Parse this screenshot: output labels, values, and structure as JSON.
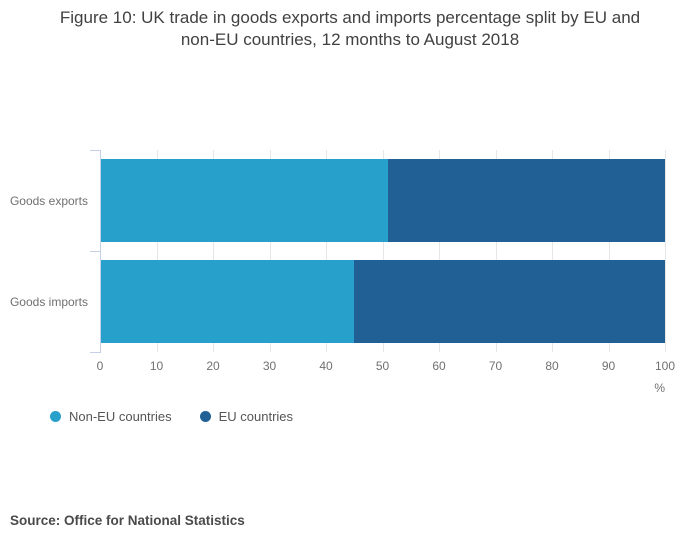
{
  "title": "Figure 10: UK trade in goods exports and imports percentage split by EU and non-EU countries, 12 months to August 2018",
  "source": "Source: Office for National Statistics",
  "chart_data": {
    "type": "bar",
    "orientation": "horizontal",
    "stacked": true,
    "title": "Figure 10: UK trade in goods exports and imports percentage split by EU and non-EU countries, 12 months to August 2018",
    "categories": [
      "Goods exports",
      "Goods imports"
    ],
    "series": [
      {
        "name": "Non-EU countries",
        "color": "#27A0CC",
        "values": [
          51,
          45
        ]
      },
      {
        "name": "EU countries",
        "color": "#206095",
        "values": [
          49,
          55
        ]
      }
    ],
    "xlabel": "%",
    "xlim": [
      0,
      100
    ],
    "xticks": [
      0,
      10,
      20,
      30,
      40,
      50,
      60,
      70,
      80,
      90,
      100
    ],
    "grid": true,
    "legend_position": "bottom",
    "colors": {
      "non_eu": "#27A0CC",
      "eu": "#206095",
      "grid": "#e6e6e6",
      "axis": "#c5cfe6"
    }
  }
}
